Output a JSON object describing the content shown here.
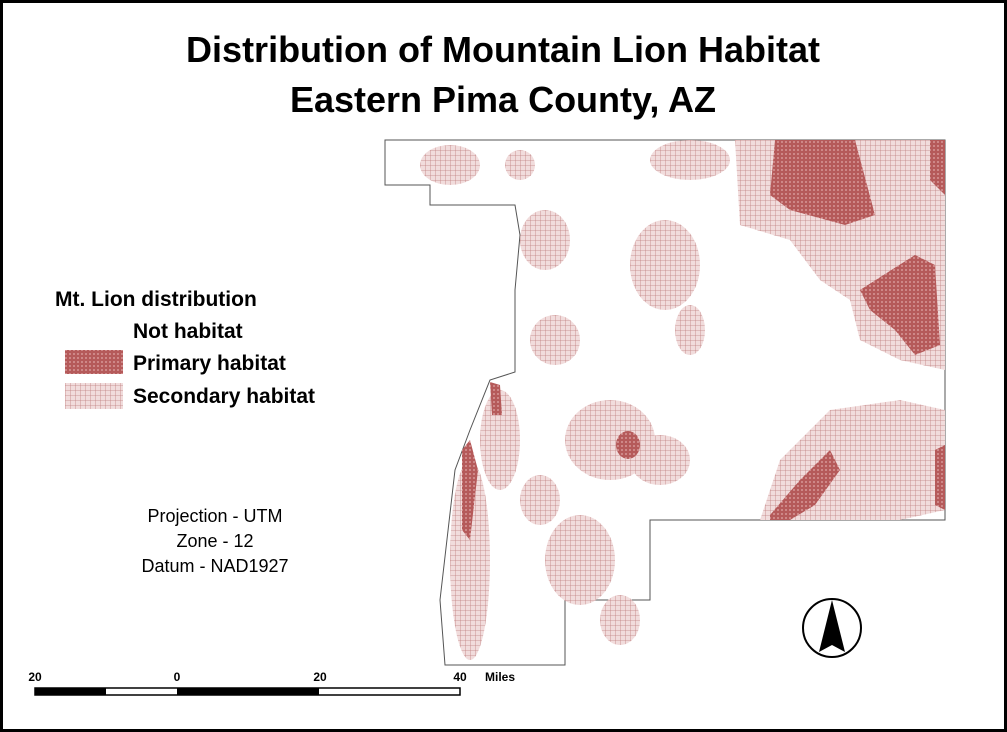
{
  "header": {
    "title_lines": [
      "Distribution of Mountain Lion Habitat",
      "Eastern Pima County, AZ"
    ]
  },
  "legend": {
    "title": "Mt. Lion distribution",
    "items": [
      "Not habitat",
      "Primary habitat",
      "Secondary habitat"
    ]
  },
  "projection": {
    "lines": [
      "Projection - UTM",
      "Zone - 12",
      "Datum - NAD1927"
    ]
  },
  "scale_bar": {
    "labels": [
      "20",
      "0",
      "20",
      "40"
    ],
    "unit": "Miles"
  }
}
